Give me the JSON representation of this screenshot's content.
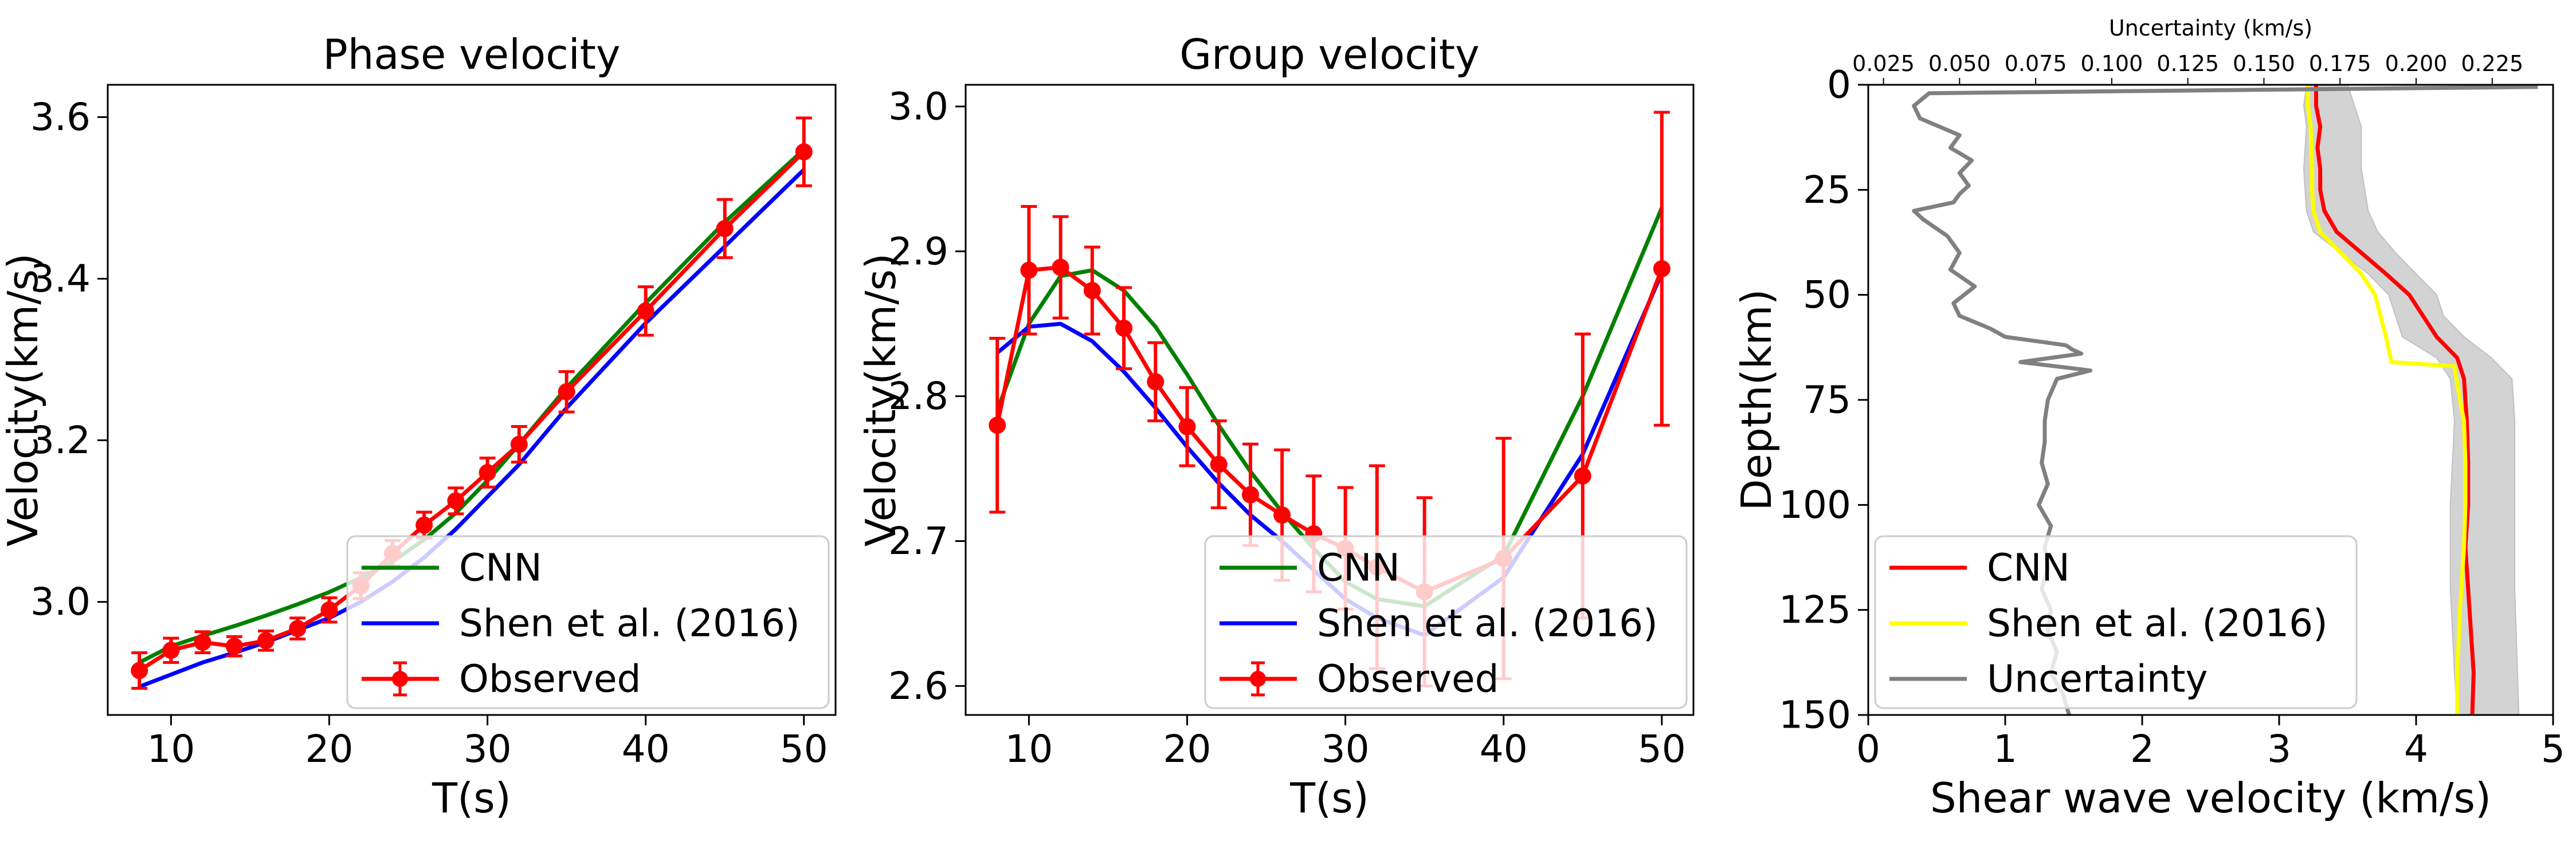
{
  "chart_data": [
    {
      "type": "line",
      "title": "Phase velocity",
      "xlabel": "T(s)",
      "ylabel": "Velocity(km/s)",
      "xlim": [
        6,
        52
      ],
      "ylim": [
        2.86,
        3.64
      ],
      "xticks": [
        10,
        20,
        30,
        40,
        50
      ],
      "xtick_labels": [
        "10",
        "20",
        "30",
        "40",
        "50"
      ],
      "yticks": [
        3.0,
        3.2,
        3.4,
        3.6
      ],
      "ytick_labels": [
        "3.0",
        "3.2",
        "3.4",
        "3.6"
      ],
      "legend_position": "lower-right",
      "series": [
        {
          "name": "CNN",
          "color": "#008000",
          "x": [
            8,
            10,
            12,
            14,
            16,
            18,
            20,
            22,
            24,
            26,
            28,
            30,
            32,
            35,
            40,
            45,
            50
          ],
          "y": [
            2.925,
            2.945,
            2.958,
            2.97,
            2.983,
            2.997,
            3.012,
            3.03,
            3.05,
            3.077,
            3.11,
            3.15,
            3.195,
            3.265,
            3.37,
            3.47,
            3.56
          ]
        },
        {
          "name": "Shen et al. (2016)",
          "color": "#0000ff",
          "x": [
            8,
            10,
            12,
            14,
            16,
            18,
            20,
            22,
            24,
            26,
            28,
            30,
            32,
            35,
            40,
            45,
            50
          ],
          "y": [
            2.895,
            2.91,
            2.925,
            2.937,
            2.95,
            2.965,
            2.98,
            3.0,
            3.025,
            3.055,
            3.09,
            3.13,
            3.17,
            3.24,
            3.345,
            3.44,
            3.535
          ]
        },
        {
          "name": "Observed",
          "color": "#ff0000",
          "x": [
            8,
            10,
            12,
            14,
            16,
            18,
            20,
            22,
            24,
            26,
            28,
            30,
            32,
            35,
            40,
            45,
            50
          ],
          "y": [
            2.915,
            2.94,
            2.95,
            2.945,
            2.952,
            2.967,
            2.99,
            3.02,
            3.06,
            3.095,
            3.125,
            3.16,
            3.195,
            3.26,
            3.36,
            3.462,
            3.557
          ],
          "yerr": [
            0.022,
            0.015,
            0.013,
            0.012,
            0.012,
            0.013,
            0.015,
            0.016,
            0.016,
            0.016,
            0.016,
            0.018,
            0.022,
            0.025,
            0.03,
            0.036,
            0.042
          ]
        }
      ]
    },
    {
      "type": "line",
      "title": "Group velocity",
      "xlabel": "T(s)",
      "ylabel": "Velocity(km/s)",
      "xlim": [
        6,
        52
      ],
      "ylim": [
        2.58,
        3.015
      ],
      "xticks": [
        10,
        20,
        30,
        40,
        50
      ],
      "xtick_labels": [
        "10",
        "20",
        "30",
        "40",
        "50"
      ],
      "yticks": [
        2.6,
        2.7,
        2.8,
        2.9,
        3.0
      ],
      "ytick_labels": [
        "2.6",
        "2.7",
        "2.8",
        "2.9",
        "3.0"
      ],
      "legend_position": "lower-right",
      "series": [
        {
          "name": "CNN",
          "color": "#008000",
          "x": [
            8,
            10,
            12,
            14,
            16,
            18,
            20,
            22,
            24,
            26,
            28,
            30,
            32,
            35,
            40,
            45,
            50
          ],
          "y": [
            2.79,
            2.85,
            2.883,
            2.887,
            2.873,
            2.848,
            2.815,
            2.78,
            2.748,
            2.72,
            2.695,
            2.672,
            2.66,
            2.655,
            2.69,
            2.8,
            2.93
          ]
        },
        {
          "name": "Shen et al. (2016)",
          "color": "#0000ff",
          "x": [
            8,
            10,
            12,
            14,
            16,
            18,
            20,
            22,
            24,
            26,
            28,
            30,
            32,
            35,
            40,
            45,
            50
          ],
          "y": [
            2.83,
            2.848,
            2.85,
            2.838,
            2.817,
            2.792,
            2.765,
            2.74,
            2.718,
            2.7,
            2.68,
            2.66,
            2.647,
            2.635,
            2.675,
            2.76,
            2.885
          ]
        },
        {
          "name": "Observed",
          "color": "#ff0000",
          "x": [
            8,
            10,
            12,
            14,
            16,
            18,
            20,
            22,
            24,
            26,
            28,
            30,
            32,
            35,
            40,
            45,
            50
          ],
          "y": [
            2.78,
            2.887,
            2.889,
            2.873,
            2.847,
            2.81,
            2.779,
            2.753,
            2.732,
            2.718,
            2.705,
            2.695,
            2.682,
            2.665,
            2.688,
            2.745,
            2.888
          ],
          "yerr": [
            0.06,
            0.044,
            0.035,
            0.03,
            0.028,
            0.027,
            0.027,
            0.03,
            0.035,
            0.045,
            0.04,
            0.042,
            0.07,
            0.065,
            0.083,
            0.098,
            0.108
          ]
        }
      ]
    },
    {
      "type": "line",
      "xlabel": "Shear wave velocity (km/s)",
      "ylabel": "Depth(km)",
      "xlim": [
        0,
        5
      ],
      "ylim": [
        150,
        0
      ],
      "xticks": [
        0,
        1,
        2,
        3,
        4,
        5
      ],
      "xtick_labels": [
        "0",
        "1",
        "2",
        "3",
        "4",
        "5"
      ],
      "yticks": [
        0,
        25,
        50,
        75,
        100,
        125,
        150
      ],
      "ytick_labels": [
        "0",
        "25",
        "50",
        "75",
        "100",
        "125",
        "150"
      ],
      "top_axis": {
        "label": "Uncertainty (km/s)",
        "xlim": [
          0.02,
          0.245
        ],
        "xticks": [
          0.025,
          0.05,
          0.075,
          0.1,
          0.125,
          0.15,
          0.175,
          0.2,
          0.225
        ],
        "xtick_labels": [
          "0.025",
          "0.050",
          "0.075",
          "0.100",
          "0.125",
          "0.150",
          "0.175",
          "0.200",
          "0.225"
        ],
        "color": "#808080"
      },
      "legend_position": "lower-left",
      "series": [
        {
          "name": "CNN",
          "color": "#ff0000",
          "velocity": [
            3.27,
            3.27,
            3.3,
            3.28,
            3.3,
            3.3,
            3.33,
            3.42,
            3.6,
            3.78,
            3.95,
            4.15,
            4.3,
            4.35,
            4.36,
            4.37,
            4.38,
            4.38,
            4.36,
            4.38,
            4.4,
            4.41,
            4.42,
            4.41
          ],
          "depth": [
            0,
            5,
            10,
            15,
            20,
            25,
            30,
            35,
            40,
            45,
            50,
            60,
            65,
            70,
            75,
            80,
            90,
            100,
            110,
            120,
            130,
            135,
            140,
            150
          ]
        },
        {
          "name": "Shen et al. (2016)",
          "color": "#ffff00",
          "velocity": [
            3.21,
            3.21,
            3.23,
            3.24,
            3.24,
            3.25,
            3.3,
            3.45,
            3.6,
            3.7,
            3.78,
            3.82,
            4.28,
            4.32,
            4.35,
            4.36,
            4.36,
            4.35,
            4.32,
            4.3,
            4.3
          ],
          "depth": [
            0,
            5,
            10,
            20,
            25,
            30,
            35,
            40,
            45,
            50,
            60,
            66,
            67,
            75,
            80,
            90,
            100,
            110,
            125,
            140,
            150
          ]
        },
        {
          "name": "Uncertainty",
          "color": "#808080",
          "uncertainty": [
            0.24,
            0.04,
            0.035,
            0.037,
            0.05,
            0.047,
            0.054,
            0.05,
            0.053,
            0.05,
            0.048,
            0.035,
            0.038,
            0.046,
            0.05,
            0.047,
            0.055,
            0.048,
            0.05,
            0.06,
            0.065,
            0.085,
            0.087,
            0.09,
            0.07,
            0.093,
            0.082,
            0.079,
            0.078,
            0.078,
            0.077,
            0.079,
            0.076,
            0.08,
            0.078,
            0.079,
            0.077,
            0.08,
            0.079,
            0.082,
            0.08,
            0.084,
            0.086
          ],
          "depth": [
            0.5,
            2,
            5,
            8,
            12,
            15,
            18,
            21,
            24,
            26,
            28,
            30,
            32,
            36,
            40,
            44,
            48,
            52,
            55,
            58,
            60,
            62,
            63,
            64,
            66,
            68,
            70,
            75,
            80,
            85,
            90,
            95,
            100,
            105,
            110,
            115,
            120,
            125,
            130,
            135,
            140,
            145,
            150
          ]
        }
      ],
      "uncertainty_band": {
        "color": "#d3d3d3",
        "depth": [
          0,
          5,
          10,
          20,
          30,
          35,
          40,
          45,
          50,
          55,
          60,
          65,
          70,
          80,
          100,
          120,
          140,
          150
        ],
        "lower": [
          3.2,
          3.18,
          3.2,
          3.18,
          3.2,
          3.25,
          3.45,
          3.65,
          3.8,
          3.85,
          3.9,
          4.15,
          4.25,
          4.28,
          4.25,
          4.25,
          4.28,
          4.3
        ],
        "upper": [
          3.5,
          3.55,
          3.6,
          3.6,
          3.65,
          3.72,
          3.85,
          4.0,
          4.15,
          4.2,
          4.35,
          4.55,
          4.7,
          4.72,
          4.72,
          4.72,
          4.74,
          4.75
        ]
      }
    }
  ]
}
